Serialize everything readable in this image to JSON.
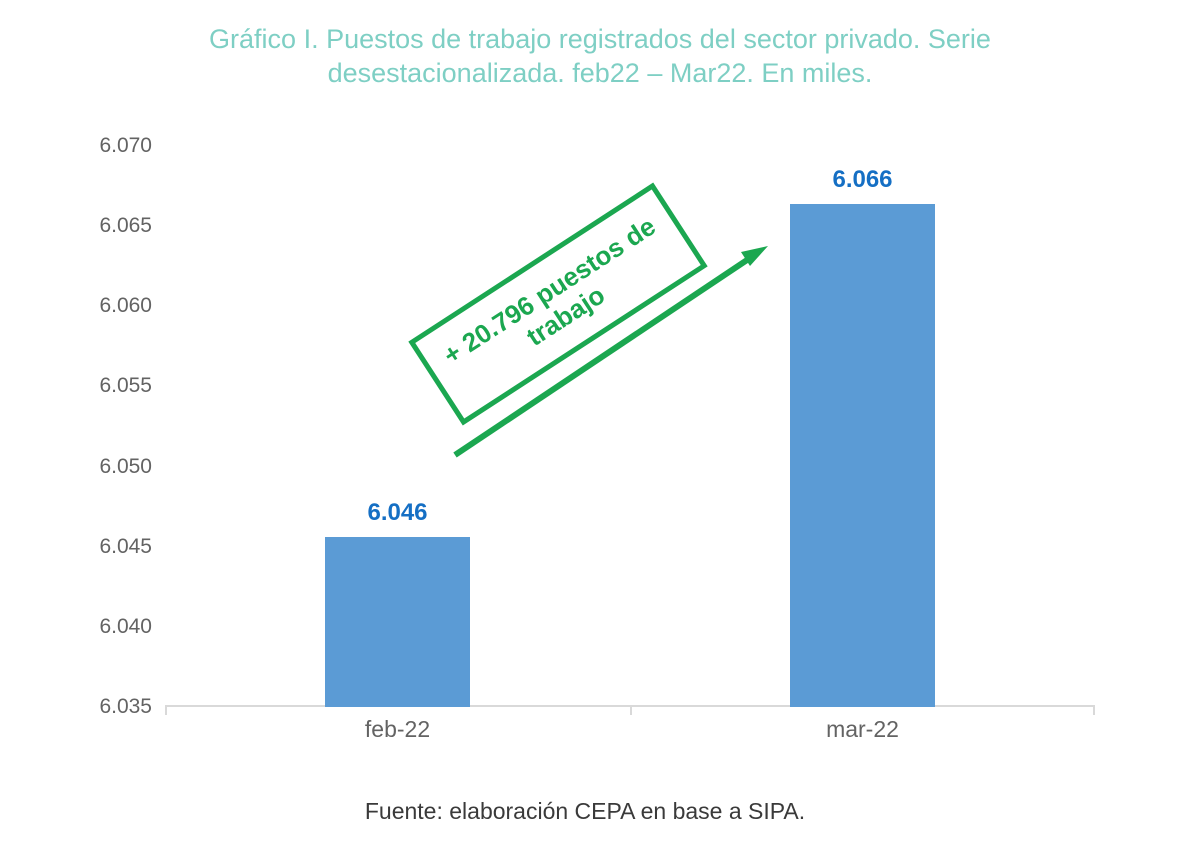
{
  "page": {
    "background": "#ffffff"
  },
  "chart_data": {
    "type": "bar",
    "title": "Gráfico I. Puestos de trabajo registrados del sector privado. Serie\ndesestacionalizada. feb22 – Mar22. En miles.",
    "categories": [
      "feb-22",
      "mar-22"
    ],
    "values": [
      6045.6,
      6066.4
    ],
    "value_labels": [
      "6.046",
      "6.066"
    ],
    "series_name": "Puestos de trabajo registrados del sector privado (en miles)",
    "ylim": [
      6035,
      6070
    ],
    "yticks": [
      6035,
      6040,
      6045,
      6050,
      6055,
      6060,
      6065,
      6070
    ],
    "ytick_labels": [
      "6.035",
      "6.040",
      "6.045",
      "6.050",
      "6.055",
      "6.060",
      "6.065",
      "6.070"
    ],
    "xlabel": "",
    "ylabel": "",
    "grid": false,
    "legend": "none",
    "annotation": {
      "text": "+ 20.796 puestos de\ntrabajo",
      "delta": 20796
    },
    "source": "Fuente: elaboración CEPA en base a SIPA."
  },
  "colors": {
    "title": "#7ecfc4",
    "bar": "#5b9bd5",
    "value_label": "#156fc4",
    "axis_text": "#636363",
    "axis_line": "#d9d9d9",
    "annotation_green": "#1ba750",
    "source_text": "#3a3a3a"
  }
}
